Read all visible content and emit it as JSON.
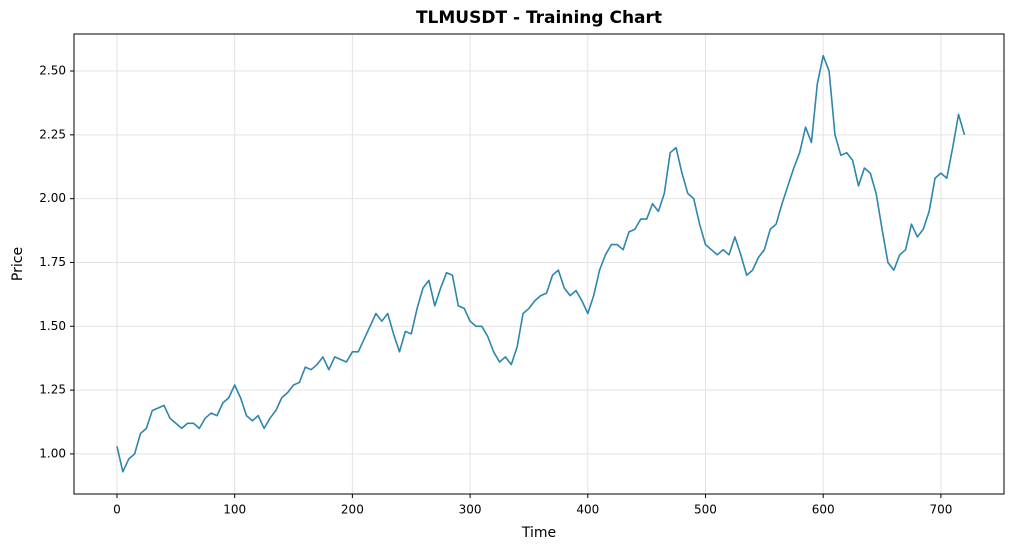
{
  "chart_data": {
    "type": "line",
    "title": "TLMUSDT - Training Chart",
    "x_label": "Time",
    "y_label": "Price",
    "x": [
      0,
      5,
      10,
      15,
      20,
      25,
      30,
      35,
      40,
      45,
      50,
      55,
      60,
      65,
      70,
      75,
      80,
      85,
      90,
      95,
      100,
      105,
      110,
      115,
      120,
      125,
      130,
      135,
      140,
      145,
      150,
      155,
      160,
      165,
      170,
      175,
      180,
      185,
      190,
      195,
      200,
      205,
      210,
      215,
      220,
      225,
      230,
      235,
      240,
      245,
      250,
      255,
      260,
      265,
      270,
      275,
      280,
      285,
      290,
      295,
      300,
      305,
      310,
      315,
      320,
      325,
      330,
      335,
      340,
      345,
      350,
      355,
      360,
      365,
      370,
      375,
      380,
      385,
      390,
      395,
      400,
      405,
      410,
      415,
      420,
      425,
      430,
      435,
      440,
      445,
      450,
      455,
      460,
      465,
      470,
      475,
      480,
      485,
      490,
      495,
      500,
      505,
      510,
      515,
      520,
      525,
      530,
      535,
      540,
      545,
      550,
      555,
      560,
      565,
      570,
      575,
      580,
      585,
      590,
      595,
      600,
      605,
      610,
      615,
      620,
      625,
      630,
      635,
      640,
      645,
      650,
      655,
      660,
      665,
      670,
      675,
      680,
      685,
      690,
      695,
      700,
      705,
      710,
      715,
      720
    ],
    "series": [
      {
        "name": "Price",
        "color": "#2e86ab",
        "values": [
          1.03,
          0.93,
          0.98,
          1.0,
          1.08,
          1.1,
          1.17,
          1.18,
          1.19,
          1.14,
          1.12,
          1.1,
          1.12,
          1.12,
          1.1,
          1.14,
          1.16,
          1.15,
          1.2,
          1.22,
          1.27,
          1.22,
          1.15,
          1.13,
          1.15,
          1.1,
          1.14,
          1.17,
          1.22,
          1.24,
          1.27,
          1.28,
          1.34,
          1.33,
          1.35,
          1.38,
          1.33,
          1.38,
          1.37,
          1.36,
          1.4,
          1.4,
          1.45,
          1.5,
          1.55,
          1.52,
          1.55,
          1.47,
          1.4,
          1.48,
          1.47,
          1.57,
          1.65,
          1.68,
          1.58,
          1.65,
          1.71,
          1.7,
          1.58,
          1.57,
          1.52,
          1.5,
          1.5,
          1.46,
          1.4,
          1.36,
          1.38,
          1.35,
          1.42,
          1.55,
          1.57,
          1.6,
          1.62,
          1.63,
          1.7,
          1.72,
          1.65,
          1.62,
          1.64,
          1.6,
          1.55,
          1.62,
          1.72,
          1.78,
          1.82,
          1.82,
          1.8,
          1.87,
          1.88,
          1.92,
          1.92,
          1.98,
          1.95,
          2.02,
          2.18,
          2.2,
          2.1,
          2.02,
          2.0,
          1.9,
          1.82,
          1.8,
          1.78,
          1.8,
          1.78,
          1.85,
          1.78,
          1.7,
          1.72,
          1.77,
          1.8,
          1.88,
          1.9,
          1.98,
          2.05,
          2.12,
          2.18,
          2.28,
          2.22,
          2.45,
          2.56,
          2.5,
          2.25,
          2.17,
          2.18,
          2.15,
          2.05,
          2.12,
          2.1,
          2.02,
          1.88,
          1.75,
          1.72,
          1.78,
          1.8,
          1.9,
          1.85,
          1.88,
          1.95,
          2.08,
          2.1,
          2.08,
          2.2,
          2.33,
          2.25
        ]
      }
    ],
    "xlim": [
      -36.5,
      753.6
    ],
    "xticks": [
      0,
      100,
      200,
      300,
      400,
      500,
      600,
      700
    ],
    "ylim": [
      0.843,
      2.645
    ],
    "yticks": [
      {
        "value": 1.0,
        "label": "1.00"
      },
      {
        "value": 1.25,
        "label": "1.25"
      },
      {
        "value": 1.5,
        "label": "1.50"
      },
      {
        "value": 1.75,
        "label": "1.75"
      },
      {
        "value": 2.0,
        "label": "2.00"
      },
      {
        "value": 2.25,
        "label": "2.25"
      },
      {
        "value": 2.5,
        "label": "2.50"
      }
    ],
    "grid": true
  }
}
